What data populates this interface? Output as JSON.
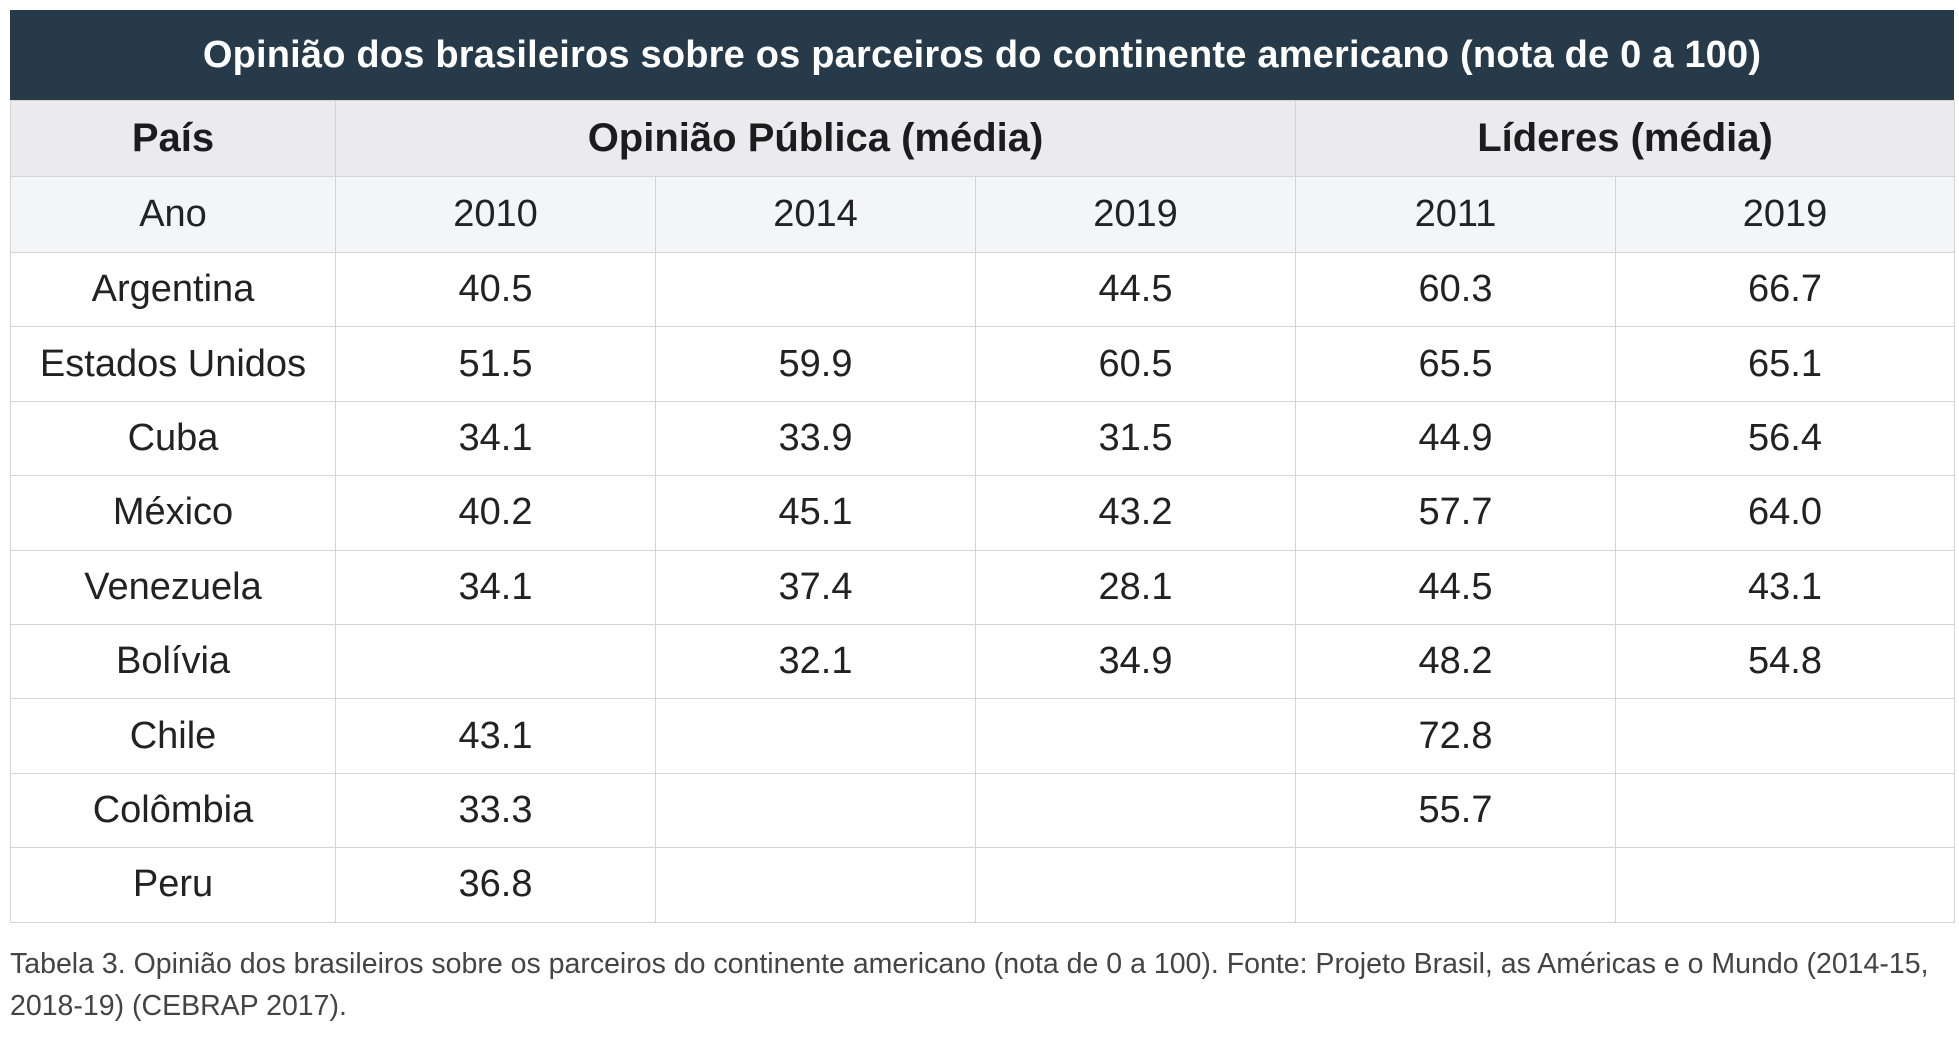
{
  "title": "Opinião dos brasileiros sobre os parceiros do continente americano (nota de 0 a 100)",
  "header": {
    "country": "País",
    "public_opinion": "Opinião Pública (média)",
    "leaders": "Líderes (média)"
  },
  "year_row": {
    "label": "Ano",
    "years": [
      "2010",
      "2014",
      "2019",
      "2011",
      "2019"
    ]
  },
  "rows": [
    {
      "country": "Argentina",
      "values": [
        "40.5",
        "",
        "44.5",
        "60.3",
        "66.7"
      ]
    },
    {
      "country": "Estados Unidos",
      "values": [
        "51.5",
        "59.9",
        "60.5",
        "65.5",
        "65.1"
      ]
    },
    {
      "country": "Cuba",
      "values": [
        "34.1",
        "33.9",
        "31.5",
        "44.9",
        "56.4"
      ]
    },
    {
      "country": "México",
      "values": [
        "40.2",
        "45.1",
        "43.2",
        "57.7",
        "64.0"
      ]
    },
    {
      "country": "Venezuela",
      "values": [
        "34.1",
        "37.4",
        "28.1",
        "44.5",
        "43.1"
      ]
    },
    {
      "country": "Bolívia",
      "values": [
        "",
        "32.1",
        "34.9",
        "48.2",
        "54.8"
      ]
    },
    {
      "country": "Chile",
      "values": [
        "43.1",
        "",
        "",
        "72.8",
        ""
      ]
    },
    {
      "country": "Colômbia",
      "values": [
        "33.3",
        "",
        "",
        "55.7",
        ""
      ]
    },
    {
      "country": "Peru",
      "values": [
        "36.8",
        "",
        "",
        "",
        ""
      ]
    }
  ],
  "caption": "Tabela 3. Opinião dos brasileiros sobre os parceiros do continente americano (nota de 0 a 100). Fonte: Projeto Brasil, as Américas e o Mundo (2014-15, 2018-19) (CEBRAP 2017)."
}
